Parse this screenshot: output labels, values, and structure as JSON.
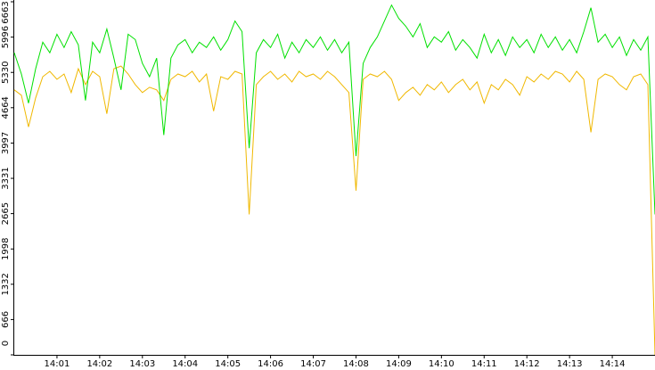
{
  "chart_data": {
    "type": "line",
    "x": [
      0,
      10,
      20,
      30,
      40,
      50,
      60,
      70,
      80,
      90,
      100,
      110,
      120,
      130,
      140,
      150,
      160,
      170,
      180,
      190,
      200,
      210,
      220,
      230,
      240,
      250,
      260,
      270,
      280,
      290,
      300,
      310,
      320,
      330,
      340,
      350,
      360,
      370,
      380,
      390,
      400,
      410,
      420,
      430,
      440,
      450,
      460,
      470,
      480,
      490,
      500,
      510,
      520,
      530,
      540,
      550,
      560,
      570,
      580,
      590,
      600,
      610,
      620,
      630,
      640,
      650,
      660,
      670,
      680,
      690,
      700,
      710,
      720,
      730,
      740,
      750,
      760,
      770,
      780,
      790,
      800,
      810,
      820,
      830,
      840,
      850,
      860,
      870,
      880,
      890,
      900
    ],
    "series": [
      {
        "color": "#f0b800",
        "values": [
          5000,
          4900,
          4300,
          4850,
          5250,
          5350,
          5200,
          5300,
          4950,
          5400,
          5100,
          5350,
          5250,
          4550,
          5400,
          5450,
          5300,
          5100,
          4950,
          5050,
          5000,
          4800,
          5200,
          5300,
          5250,
          5350,
          5150,
          5300,
          4600,
          5250,
          5200,
          5350,
          5300,
          2650,
          5100,
          5250,
          5350,
          5200,
          5300,
          5150,
          5350,
          5250,
          5300,
          5200,
          5350,
          5250,
          5100,
          4950,
          3100,
          5200,
          5300,
          5250,
          5350,
          5200,
          4800,
          4950,
          5050,
          4900,
          5100,
          5000,
          5150,
          4950,
          5100,
          5200,
          5000,
          5150,
          4750,
          5100,
          5000,
          5200,
          5100,
          4900,
          5250,
          5150,
          5300,
          5200,
          5350,
          5300,
          5150,
          5350,
          5200,
          4200,
          5200,
          5300,
          5250,
          5100,
          5000,
          5250,
          5300,
          5100,
          0
        ]
      },
      {
        "color": "#00e000",
        "values": [
          5700,
          5300,
          4750,
          5400,
          5900,
          5700,
          6050,
          5800,
          6100,
          5850,
          4800,
          5900,
          5700,
          6150,
          5600,
          5000,
          6050,
          5950,
          5500,
          5250,
          5600,
          4150,
          5600,
          5850,
          5950,
          5700,
          5900,
          5800,
          6000,
          5750,
          5950,
          6300,
          6100,
          3900,
          5700,
          5950,
          5800,
          6050,
          5600,
          5900,
          5700,
          5950,
          5800,
          6000,
          5750,
          5950,
          5700,
          5900,
          3750,
          5500,
          5800,
          6000,
          6300,
          6600,
          6350,
          6200,
          6000,
          6250,
          5800,
          6000,
          5900,
          6100,
          5750,
          5950,
          5800,
          5600,
          6050,
          5700,
          5950,
          5650,
          6000,
          5800,
          5950,
          5700,
          6050,
          5800,
          6000,
          5750,
          5950,
          5700,
          6100,
          6550,
          5900,
          6050,
          5800,
          6000,
          5650,
          5950,
          5750,
          6000,
          2650
        ]
      }
    ],
    "xlim": [
      0,
      900
    ],
    "xticks": [
      {
        "value": 60,
        "label": "14:01"
      },
      {
        "value": 120,
        "label": "14:02"
      },
      {
        "value": 180,
        "label": "14:03"
      },
      {
        "value": 240,
        "label": "14:04"
      },
      {
        "value": 300,
        "label": "14:05"
      },
      {
        "value": 360,
        "label": "14:06"
      },
      {
        "value": 420,
        "label": "14:07"
      },
      {
        "value": 480,
        "label": "14:08"
      },
      {
        "value": 540,
        "label": "14:09"
      },
      {
        "value": 600,
        "label": "14:10"
      },
      {
        "value": 660,
        "label": "14:11"
      },
      {
        "value": 720,
        "label": "14:12"
      },
      {
        "value": 780,
        "label": "14:13"
      },
      {
        "value": 840,
        "label": "14:14"
      }
    ],
    "ylim": [
      0,
      6663
    ],
    "yticks": [
      0,
      666,
      1332,
      1998,
      2665,
      3331,
      3997,
      4664,
      5330,
      5996,
      6663
    ]
  }
}
